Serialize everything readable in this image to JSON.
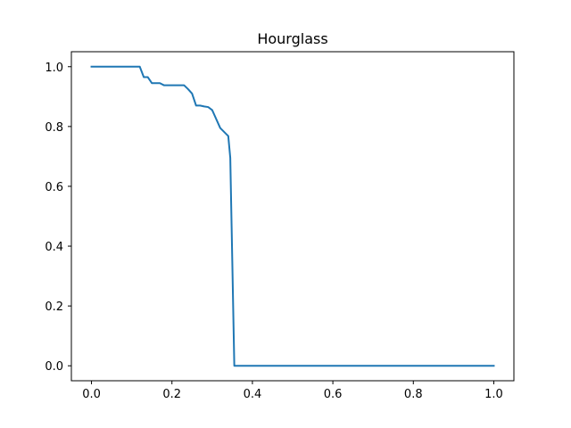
{
  "chart_data": {
    "type": "line",
    "title": "Hourglass",
    "xlabel": "",
    "ylabel": "",
    "xlim": [
      -0.05,
      1.05
    ],
    "ylim": [
      -0.05,
      1.05
    ],
    "xticks": [
      0.0,
      0.2,
      0.4,
      0.6,
      0.8,
      1.0
    ],
    "xtick_labels": [
      "0.0",
      "0.2",
      "0.4",
      "0.6",
      "0.8",
      "1.0"
    ],
    "yticks": [
      0.0,
      0.2,
      0.4,
      0.6,
      0.8,
      1.0
    ],
    "ytick_labels": [
      "0.0",
      "0.2",
      "0.4",
      "0.6",
      "0.8",
      "1.0"
    ],
    "grid": false,
    "series": [
      {
        "color": "#1f77b4",
        "x": [
          0.0,
          0.12,
          0.13,
          0.14,
          0.15,
          0.17,
          0.18,
          0.19,
          0.2,
          0.21,
          0.22,
          0.23,
          0.24,
          0.25,
          0.26,
          0.27,
          0.28,
          0.29,
          0.3,
          0.32,
          0.34,
          0.345,
          0.35,
          0.355,
          0.36,
          1.0
        ],
        "y": [
          1.0,
          1.0,
          0.965,
          0.965,
          0.945,
          0.945,
          0.938,
          0.938,
          0.938,
          0.938,
          0.938,
          0.938,
          0.925,
          0.91,
          0.87,
          0.87,
          0.867,
          0.865,
          0.855,
          0.795,
          0.768,
          0.695,
          0.35,
          0.0,
          0.0,
          0.0
        ]
      }
    ]
  }
}
